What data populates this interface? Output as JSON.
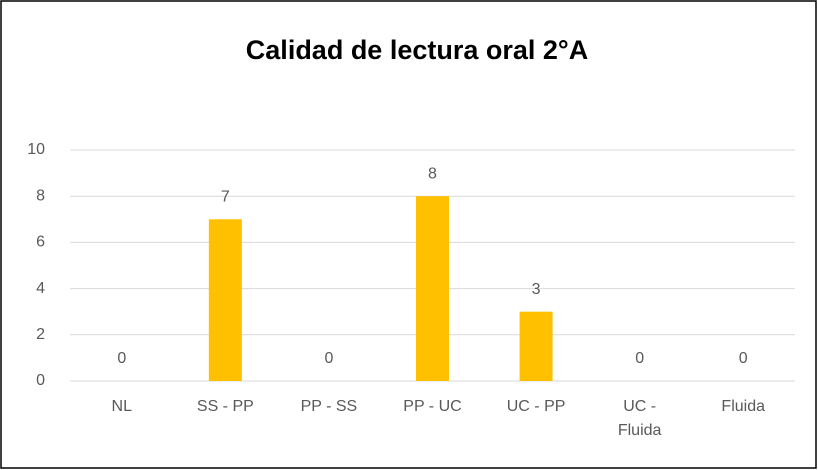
{
  "chart_data": {
    "type": "bar",
    "title": "Calidad de lectura oral 2°A",
    "categories": [
      "NL",
      "SS - PP",
      "PP - SS",
      "PP - UC",
      "UC - PP",
      "UC - Fluida",
      "Fluida"
    ],
    "values": [
      0,
      7,
      0,
      8,
      3,
      0,
      0
    ],
    "color": "#ffc000",
    "ylim": [
      0,
      10
    ],
    "yticks": [
      0,
      2,
      4,
      6,
      8,
      10
    ],
    "grid": true
  }
}
